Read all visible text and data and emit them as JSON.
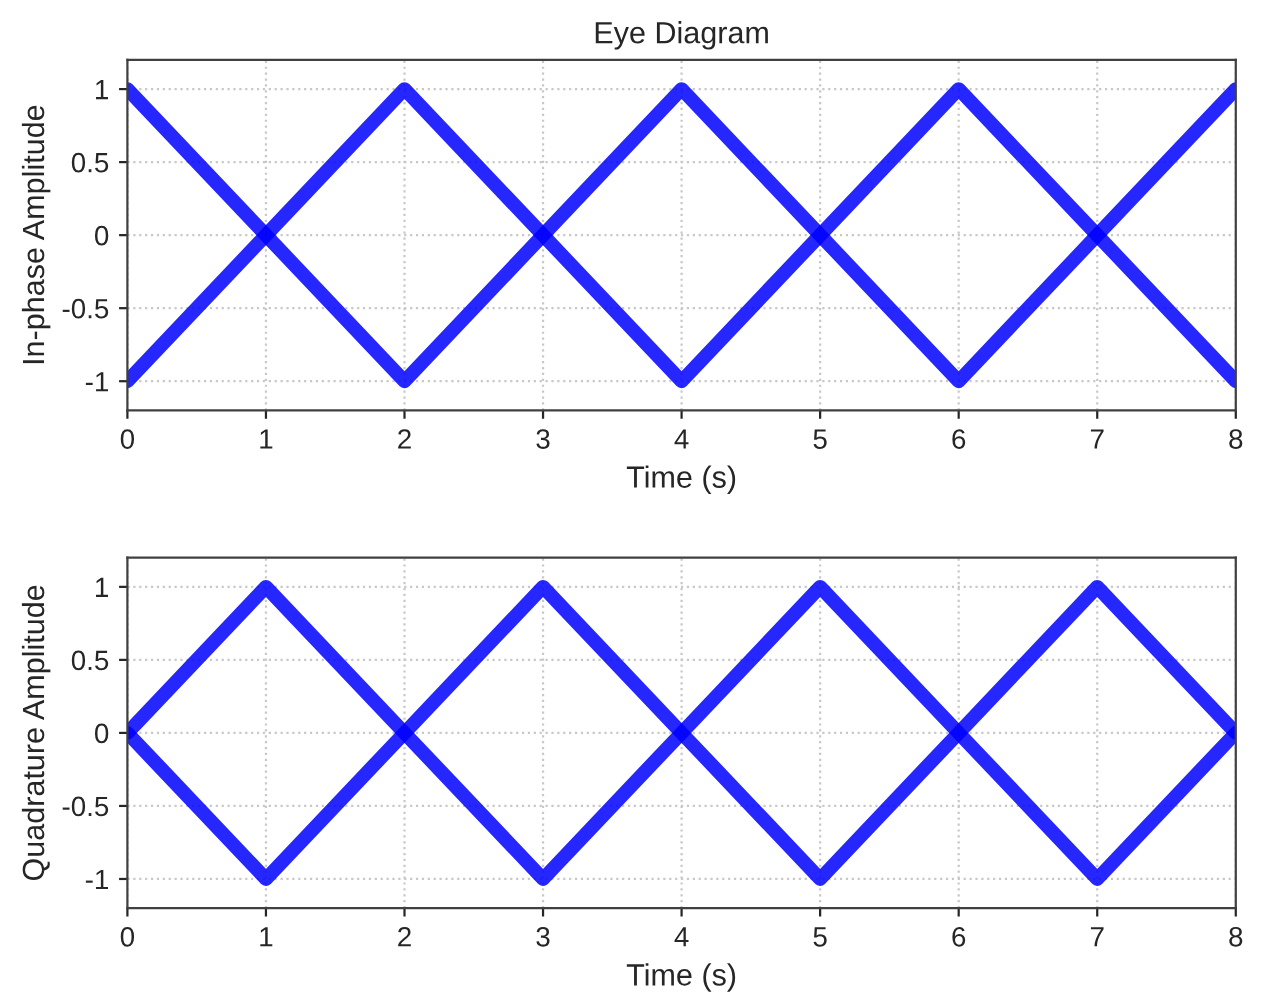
{
  "chart_data": [
    {
      "type": "line",
      "title": "Eye Diagram",
      "xlabel": "Time (s)",
      "ylabel": "In-phase Amplitude",
      "x": [
        0,
        1,
        2,
        3,
        4,
        5,
        6,
        7,
        8
      ],
      "series": [
        {
          "color": "#0000ff",
          "values": [
            1,
            0,
            -1,
            0,
            1,
            0,
            -1,
            0,
            1
          ]
        },
        {
          "color": "#0000ff",
          "values": [
            -1,
            0,
            1,
            0,
            -1,
            0,
            1,
            0,
            -1
          ]
        }
      ],
      "xlim": [
        0,
        8
      ],
      "xticks": [
        0,
        1,
        2,
        3,
        4,
        5,
        6,
        7,
        8
      ],
      "ylim": [
        -1.2,
        1.2
      ],
      "yticks": [
        -1,
        -0.5,
        0,
        0.5,
        1
      ],
      "grid": true,
      "line_style": "solid",
      "marker": "none"
    },
    {
      "type": "line",
      "xlabel": "Time (s)",
      "ylabel": "Quadrature Amplitude",
      "x": [
        0,
        1,
        2,
        3,
        4,
        5,
        6,
        7,
        8
      ],
      "series": [
        {
          "color": "#0000ff",
          "values": [
            0,
            1,
            0,
            -1,
            0,
            1,
            0,
            -1,
            0
          ]
        },
        {
          "color": "#0000ff",
          "values": [
            0,
            -1,
            0,
            1,
            0,
            -1,
            0,
            1,
            0
          ]
        }
      ],
      "xlim": [
        0,
        8
      ],
      "xticks": [
        0,
        1,
        2,
        3,
        4,
        5,
        6,
        7,
        8
      ],
      "ylim": [
        -1.2,
        1.2
      ],
      "yticks": [
        -1,
        -0.5,
        0,
        0.5,
        1
      ],
      "grid": true,
      "line_style": "solid",
      "marker": "none"
    }
  ]
}
